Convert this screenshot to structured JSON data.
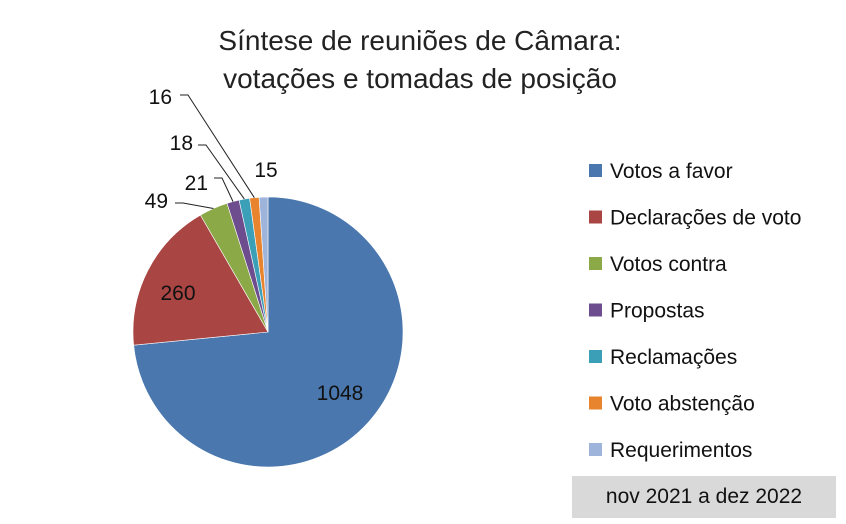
{
  "chart_data": {
    "type": "pie",
    "title_lines": [
      "Síntese de reuniões de Câmara:",
      "votações e tomadas de posição"
    ],
    "categories": [
      "Votos a favor",
      "Declarações de voto",
      "Votos contra",
      "Propostas",
      "Reclamações",
      "Voto abstenção",
      "Requerimentos"
    ],
    "values": [
      1048,
      260,
      49,
      21,
      18,
      16,
      15
    ],
    "colors": [
      "#4a77ad",
      "#a94543",
      "#8ba946",
      "#6e4d8f",
      "#3b9fb8",
      "#e8842e",
      "#9fb4db"
    ],
    "legend_position": "right"
  },
  "footer": {
    "period": "nov 2021 a dez 2022"
  }
}
